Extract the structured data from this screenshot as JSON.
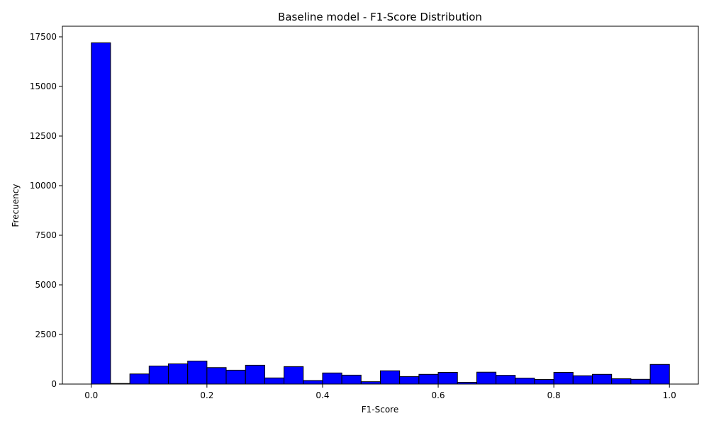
{
  "chart_data": {
    "type": "bar",
    "title": "Baseline model - F1-Score Distribution",
    "xlabel": "F1-Score",
    "ylabel": "Frecuency",
    "bin_width": 0.0333,
    "bins": [
      {
        "x0": 0.0,
        "value": 17200
      },
      {
        "x0": 0.0333,
        "value": 30
      },
      {
        "x0": 0.0667,
        "value": 510
      },
      {
        "x0": 0.1,
        "value": 910
      },
      {
        "x0": 0.1333,
        "value": 1020
      },
      {
        "x0": 0.1667,
        "value": 1160
      },
      {
        "x0": 0.2,
        "value": 830
      },
      {
        "x0": 0.2333,
        "value": 700
      },
      {
        "x0": 0.2667,
        "value": 950
      },
      {
        "x0": 0.3,
        "value": 310
      },
      {
        "x0": 0.3333,
        "value": 880
      },
      {
        "x0": 0.3667,
        "value": 180
      },
      {
        "x0": 0.4,
        "value": 560
      },
      {
        "x0": 0.4333,
        "value": 450
      },
      {
        "x0": 0.4667,
        "value": 120
      },
      {
        "x0": 0.5,
        "value": 670
      },
      {
        "x0": 0.5333,
        "value": 380
      },
      {
        "x0": 0.5667,
        "value": 490
      },
      {
        "x0": 0.6,
        "value": 590
      },
      {
        "x0": 0.6333,
        "value": 90
      },
      {
        "x0": 0.6667,
        "value": 600
      },
      {
        "x0": 0.7,
        "value": 440
      },
      {
        "x0": 0.7333,
        "value": 300
      },
      {
        "x0": 0.7667,
        "value": 230
      },
      {
        "x0": 0.8,
        "value": 590
      },
      {
        "x0": 0.8333,
        "value": 420
      },
      {
        "x0": 0.8667,
        "value": 490
      },
      {
        "x0": 0.9,
        "value": 270
      },
      {
        "x0": 0.9333,
        "value": 240
      },
      {
        "x0": 0.9667,
        "value": 990
      }
    ],
    "xlim": [
      -0.05,
      1.05
    ],
    "ylim": [
      0,
      18035
    ],
    "x_ticks": [
      0.0,
      0.2,
      0.4,
      0.6,
      0.8,
      1.0
    ],
    "x_tick_labels": [
      "0.0",
      "0.2",
      "0.4",
      "0.6",
      "0.8",
      "1.0"
    ],
    "y_ticks": [
      0,
      2500,
      5000,
      7500,
      10000,
      12500,
      15000,
      17500
    ],
    "y_tick_labels": [
      "0",
      "2500",
      "5000",
      "7500",
      "10000",
      "12500",
      "15000",
      "17500"
    ],
    "bar_color": "#0000ff",
    "edge_color": "#000000",
    "grid": false,
    "legend": "none"
  }
}
